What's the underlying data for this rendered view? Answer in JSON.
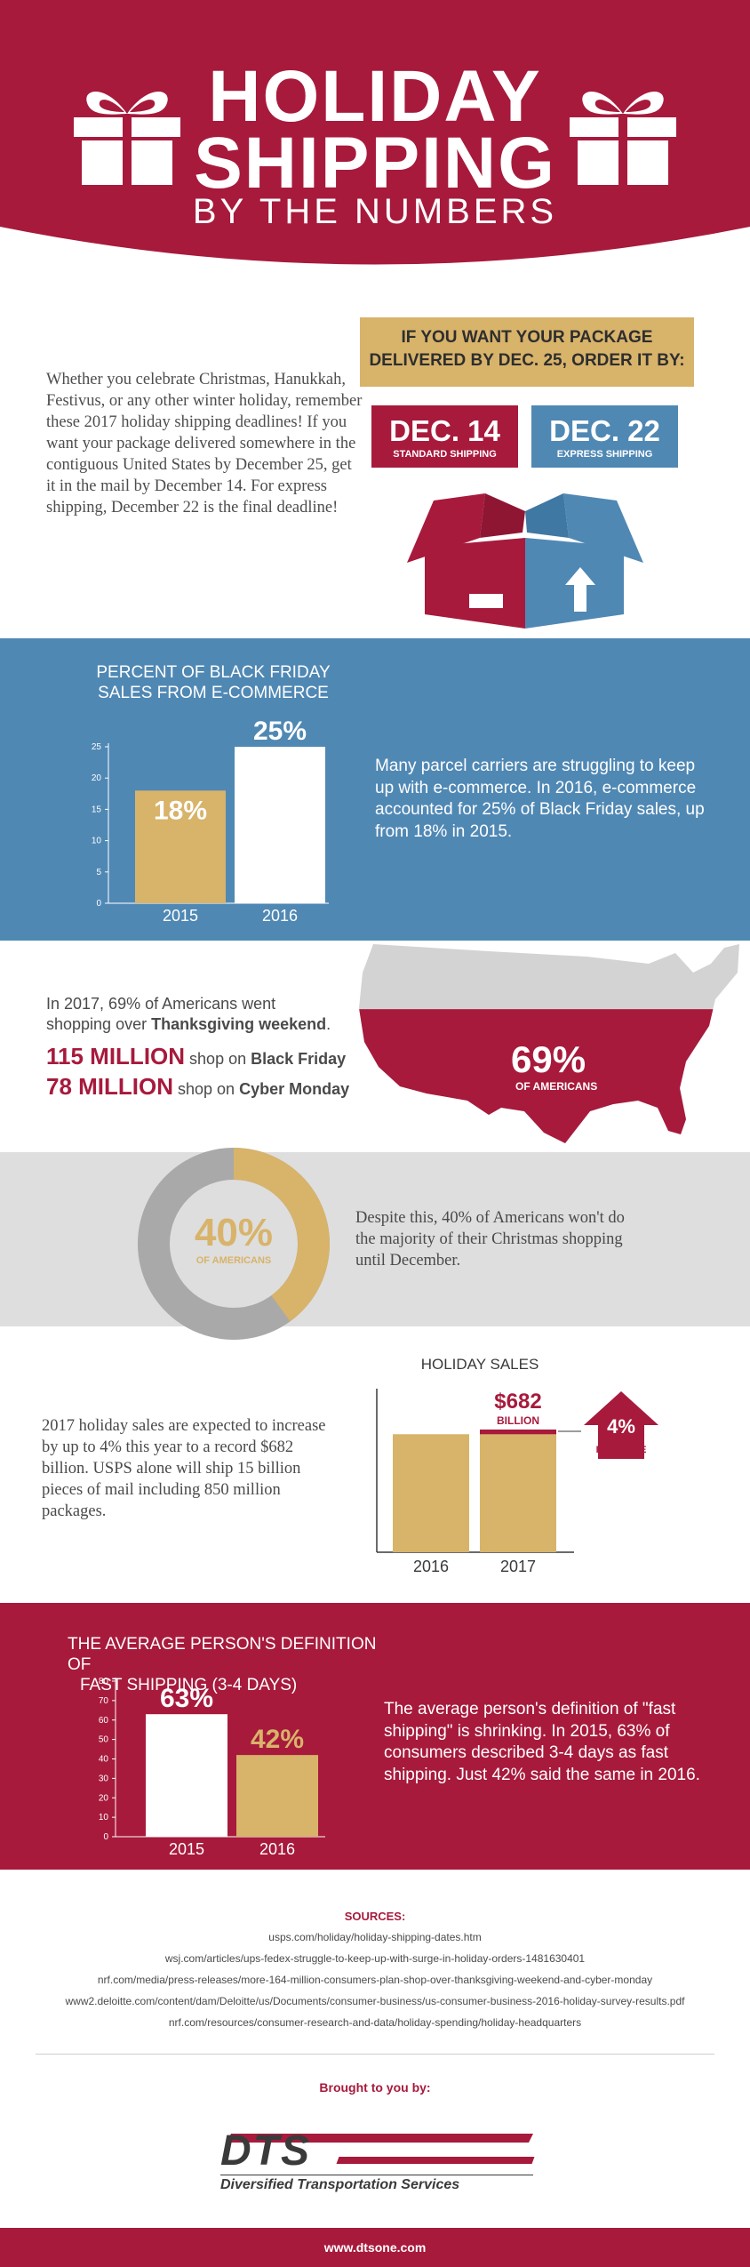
{
  "header": {
    "title_line1": "HOLIDAY",
    "title_line2": "SHIPPING",
    "title_line3": "BY THE NUMBERS"
  },
  "deadlines": {
    "intro": "Whether you celebrate Christmas, Hanukkah, Festivus, or any other winter holiday, remember these 2017 holiday shipping deadlines! If you want your package delivered somewhere in the contiguous United States by December 25, get it in the mail by December 14. For express shipping, December 22 is the final deadline!",
    "box_line1": "IF YOU WANT YOUR PACKAGE",
    "box_line2": "DELIVERED BY DEC. 25, ORDER IT BY:",
    "standard_date": "DEC. 14",
    "standard_label": "STANDARD SHIPPING",
    "express_date": "DEC. 22",
    "express_label": "EXPRESS SHIPPING",
    "colors": {
      "red": "#a71a3c",
      "blue": "#5088b4",
      "gold": "#d8b36a"
    },
    "icon": "open-box-icon"
  },
  "black_friday": {
    "title_line1": "PERCENT OF BLACK FRIDAY",
    "title_line2": "SALES FROM E-COMMERCE",
    "text": "Many parcel carriers are struggling to keep up with e-commerce. In 2016, e-commerce accounted for 25% of Black Friday sales, up from 18% in 2015."
  },
  "thanksgiving": {
    "line1": "In 2017, 69% of Americans went",
    "line2_pre": "shopping over ",
    "line2_bold": "Thanksgiving weekend",
    "line2_post": ".",
    "stat1_big": "115 MILLION",
    "stat1_mid": " shop on ",
    "stat1_bold": "Black Friday",
    "stat2_big": "78 MILLION",
    "stat2_mid": " shop on ",
    "stat2_bold": "Cyber Monday",
    "map_pct": "69%",
    "map_label": "OF AMERICANS",
    "map_value": 69
  },
  "december": {
    "donut_pct": "40%",
    "donut_label": "OF AMERICANS",
    "donut_value": 40,
    "text": "Despite this, 40% of Americans won't do the majority of their Christmas shopping until December."
  },
  "holiday_sales": {
    "text": "2017 holiday sales are expected to increase by up to 4% this year to a record $682 billion. USPS alone will ship 15 billion pieces of mail including 850 million packages.",
    "increase_pct": "4%",
    "increase_label": "INCREASE"
  },
  "fast_shipping": {
    "title_line1": "THE AVERAGE PERSON'S DEFINITION OF",
    "title_line2": "FAST SHIPPING (3-4 DAYS)",
    "text": "The average person's definition of \"fast shipping\" is shrinking. In 2015, 63% of consumers described 3-4 days as fast shipping. Just 42% said the same in 2016."
  },
  "chart_data": [
    {
      "type": "bar",
      "title": "PERCENT OF BLACK FRIDAY SALES FROM E-COMMERCE",
      "categories": [
        "2015",
        "2016"
      ],
      "values": [
        18,
        25
      ],
      "value_labels": [
        "18%",
        "25%"
      ],
      "yticks": [
        0,
        5,
        10,
        15,
        20,
        25
      ],
      "ylim": [
        0,
        25
      ]
    },
    {
      "type": "bar",
      "title": "HOLIDAY SALES",
      "categories": [
        "2016",
        "2017"
      ],
      "values": [
        656,
        682
      ],
      "value_labels": [
        "",
        "$682"
      ],
      "value_sublabel": "BILLION"
    },
    {
      "type": "bar",
      "title": "THE AVERAGE PERSON'S DEFINITION OF FAST SHIPPING (3-4 DAYS)",
      "categories": [
        "2015",
        "2016"
      ],
      "values": [
        63,
        42
      ],
      "value_labels": [
        "63%",
        "42%"
      ],
      "yticks": [
        0,
        10,
        20,
        30,
        40,
        50,
        60,
        70,
        80
      ],
      "ylim": [
        0,
        80
      ]
    }
  ],
  "sources": {
    "title": "SOURCES:",
    "lines": [
      "usps.com/holiday/holiday-shipping-dates.htm",
      "wsj.com/articles/ups-fedex-struggle-to-keep-up-with-surge-in-holiday-orders-1481630401",
      "nrf.com/media/press-releases/more-164-million-consumers-plan-shop-over-thanksgiving-weekend-and-cyber-monday",
      "www2.deloitte.com/content/dam/Deloitte/us/Documents/consumer-business/us-consumer-business-2016-holiday-survey-results.pdf",
      "nrf.com/resources/consumer-research-and-data/holiday-spending/holiday-headquarters"
    ]
  },
  "brought": {
    "label": "Brought to you by:",
    "logo_text": "DTS",
    "company": "Diversified Transportation Services"
  },
  "footer": {
    "url": "www.dtsone.com"
  }
}
